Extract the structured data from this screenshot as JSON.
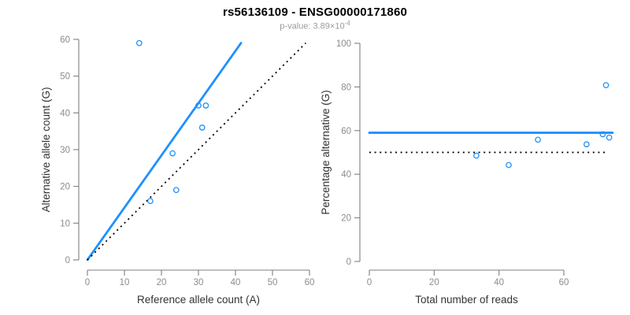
{
  "header": {
    "title": "rs56136109 - ENSG00000171860",
    "subtitle_label": "p-value:",
    "subtitle_value": "3.89×10",
    "subtitle_exponent": "-4"
  },
  "colors": {
    "point_blue": "#1E90FF",
    "fit_line_blue": "#1E90FF",
    "reference_line_black": "#000000",
    "axis_gray": "#7F7F7F",
    "tick_label_gray": "#8C8C8C",
    "axis_title_dark": "#333333",
    "subtitle_gray": "#9A9A9A"
  },
  "chart_data": [
    {
      "type": "scatter",
      "panel": "left",
      "xlabel": "Reference allele count (A)",
      "ylabel": "Alternative allele count (G)",
      "xlim": [
        0,
        60
      ],
      "ylim": [
        0,
        60
      ],
      "xticks": [
        0,
        10,
        20,
        30,
        40,
        50,
        60
      ],
      "yticks": [
        0,
        10,
        20,
        30,
        40,
        50,
        60
      ],
      "grid": false,
      "legend": false,
      "points": [
        [
          14,
          59
        ],
        [
          17,
          16
        ],
        [
          23,
          29
        ],
        [
          24,
          19
        ],
        [
          30,
          42
        ],
        [
          31,
          36
        ],
        [
          32,
          42
        ]
      ],
      "lines": [
        {
          "role": "fit-line",
          "style": "solid",
          "color": "#1E90FF",
          "from": [
            0,
            0
          ],
          "to": [
            41.5,
            59
          ]
        },
        {
          "role": "identity-line",
          "style": "dotted",
          "color": "#000000",
          "from": [
            0,
            0
          ],
          "to": [
            59,
            59
          ]
        }
      ]
    },
    {
      "type": "scatter",
      "panel": "right",
      "xlabel": "Total number of reads",
      "ylabel": "Percentage alternative (G)",
      "xlim": [
        0,
        75
      ],
      "ylim": [
        0,
        100
      ],
      "xticks": [
        0,
        20,
        40,
        60
      ],
      "yticks": [
        0,
        20,
        40,
        60,
        80,
        100
      ],
      "grid": false,
      "legend": false,
      "points": [
        [
          33,
          48.5
        ],
        [
          43,
          44.2
        ],
        [
          52,
          55.8
        ],
        [
          67,
          53.7
        ],
        [
          72,
          58.3
        ],
        [
          73,
          80.8
        ],
        [
          74,
          56.8
        ]
      ],
      "lines": [
        {
          "role": "fit-line",
          "style": "solid",
          "color": "#1E90FF",
          "from": [
            0,
            59
          ],
          "to": [
            75,
            59
          ]
        },
        {
          "role": "null-line",
          "style": "dotted",
          "color": "#000000",
          "from": [
            0,
            50
          ],
          "to": [
            73,
            50
          ]
        }
      ]
    }
  ]
}
